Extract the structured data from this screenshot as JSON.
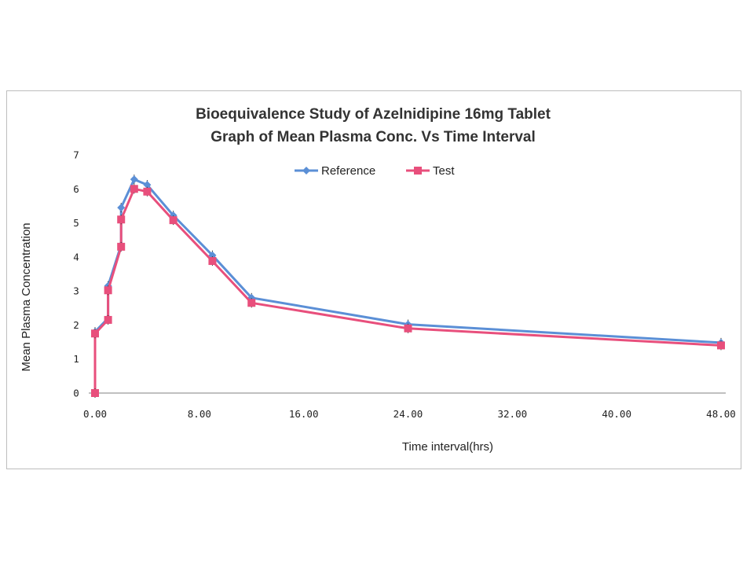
{
  "chart_data": {
    "type": "line",
    "title": "Bioequivalence Study of Azelnidipine 16mg Tablet",
    "subtitle": "Graph of Mean Plasma Conc. Vs Time Interval",
    "xlabel": "Time interval(hrs)",
    "ylabel": "Mean Plasma Concentration",
    "xlim": [
      0,
      48
    ],
    "ylim": [
      0,
      7
    ],
    "x_ticks": [
      "0.00",
      "8.00",
      "16.00",
      "24.00",
      "32.00",
      "40.00",
      "48.00"
    ],
    "x_tick_values": [
      0,
      8,
      16,
      24,
      32,
      40,
      48
    ],
    "y_ticks": [
      "0",
      "1",
      "2",
      "3",
      "4",
      "5",
      "6",
      "7"
    ],
    "y_tick_values": [
      0,
      1,
      2,
      3,
      4,
      5,
      6,
      7
    ],
    "grid": false,
    "legend_position": "top-center",
    "series": [
      {
        "name": "Reference",
        "color": "#5b8fd6",
        "marker": "diamond",
        "x": [
          0,
          0,
          1,
          1,
          2,
          2,
          3,
          4,
          6,
          9,
          12,
          24,
          48
        ],
        "y": [
          0,
          1.8,
          2.2,
          3.15,
          4.35,
          5.45,
          6.28,
          6.12,
          5.22,
          4.05,
          2.8,
          2.02,
          1.48
        ]
      },
      {
        "name": "Test",
        "color": "#e84f7c",
        "marker": "square",
        "x": [
          0,
          0,
          1,
          1,
          2,
          2,
          3,
          4,
          6,
          9,
          12,
          24,
          48
        ],
        "y": [
          0,
          1.75,
          2.15,
          3.02,
          4.3,
          5.1,
          6.0,
          5.92,
          5.08,
          3.88,
          2.65,
          1.9,
          1.4
        ]
      }
    ]
  }
}
